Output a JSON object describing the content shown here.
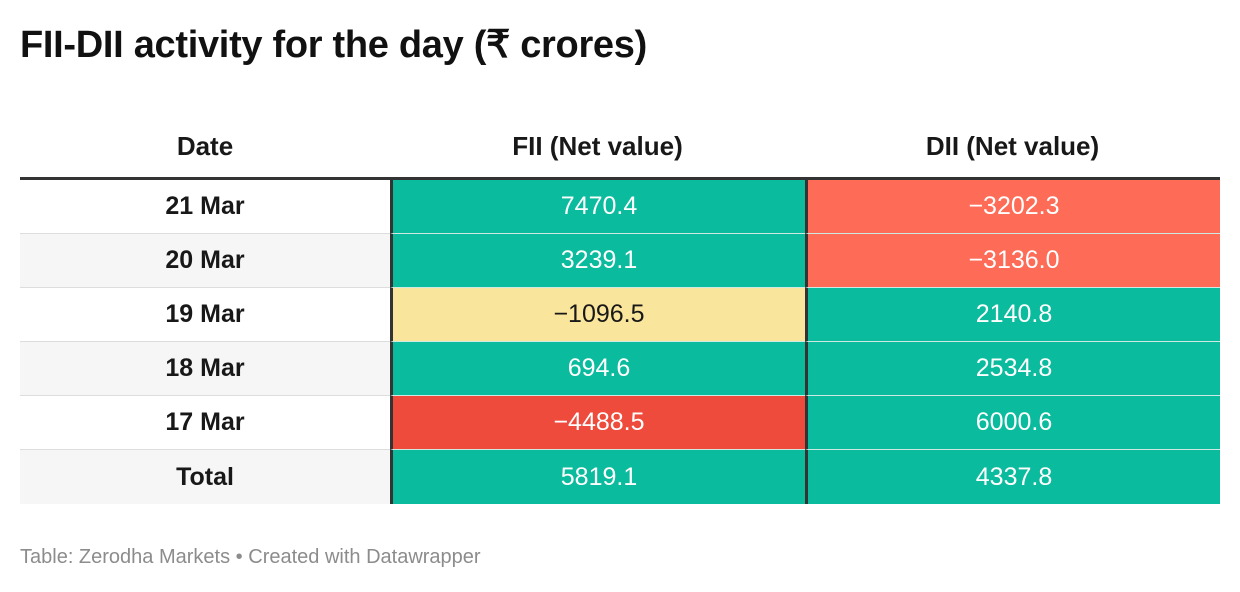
{
  "title": "FII-DII activity for the day (₹ crores)",
  "footer": {
    "source": "Table: Zerodha Markets",
    "separator": "•",
    "credit": "Created with Datawrapper"
  },
  "colors": {
    "positive": "#0abb9e",
    "negative_large": "#ef4b3c",
    "negative_medium": "#fe6b56",
    "negative_small": "#fae59c",
    "negative_small_text": "#181818"
  },
  "chart_data": {
    "type": "table",
    "title": "FII-DII activity for the day (₹ crores)",
    "columns": [
      "Date",
      "FII (Net value)",
      "DII (Net value)"
    ],
    "rows": [
      {
        "date": "21 Mar",
        "fii": "7470.4",
        "dii": "−3202.3",
        "fii_color": "#0abb9e",
        "dii_color": "#fe6b56"
      },
      {
        "date": "20 Mar",
        "fii": "3239.1",
        "dii": "−3136.0",
        "fii_color": "#0abb9e",
        "dii_color": "#fe6b56"
      },
      {
        "date": "19 Mar",
        "fii": "−1096.5",
        "dii": "2140.8",
        "fii_color": "#fae59c",
        "dii_color": "#0abb9e"
      },
      {
        "date": "18 Mar",
        "fii": "694.6",
        "dii": "2534.8",
        "fii_color": "#0abb9e",
        "dii_color": "#0abb9e"
      },
      {
        "date": "17 Mar",
        "fii": "−4488.5",
        "dii": "6000.6",
        "fii_color": "#ef4b3c",
        "dii_color": "#0abb9e"
      },
      {
        "date": "Total",
        "fii": "5819.1",
        "dii": "4337.8",
        "fii_color": "#0abb9e",
        "dii_color": "#0abb9e"
      }
    ]
  }
}
